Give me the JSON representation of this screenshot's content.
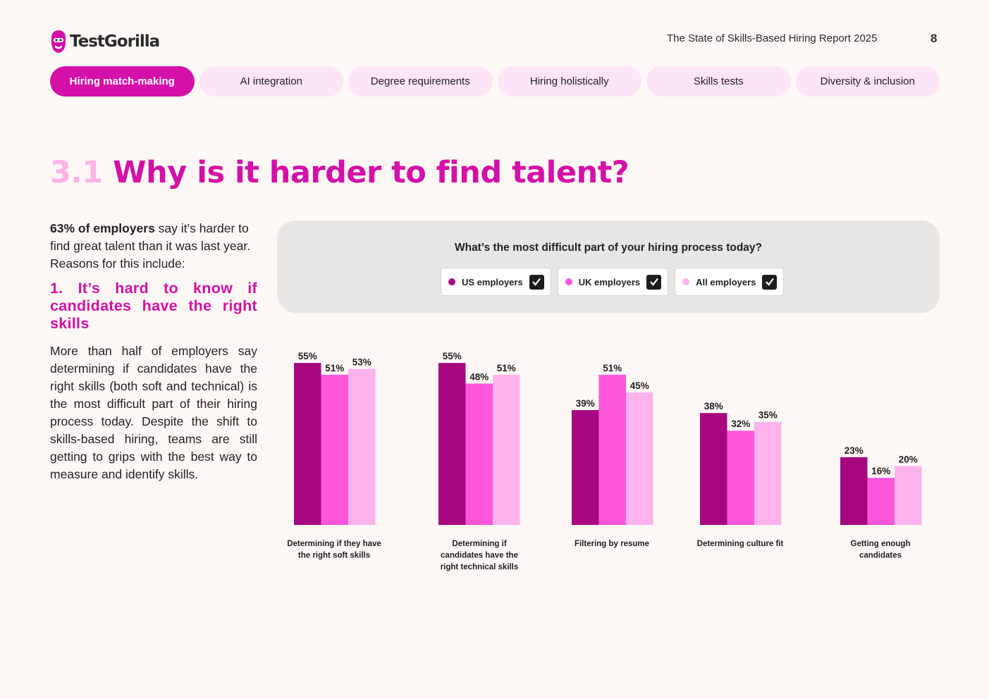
{
  "brand": {
    "name": "TestGorilla",
    "color": "#d410a8"
  },
  "header": {
    "report_title": "The State of Skills-Based Hiring Report 2025",
    "page_number": "8"
  },
  "tabs": [
    {
      "label": "Hiring match-making",
      "active": true
    },
    {
      "label": "AI integration",
      "active": false
    },
    {
      "label": "Degree requirements",
      "active": false
    },
    {
      "label": "Hiring holistically",
      "active": false
    },
    {
      "label": "Skills tests",
      "active": false
    },
    {
      "label": "Diversity & inclusion",
      "active": false
    }
  ],
  "section": {
    "number": "3.1",
    "title": "Why is it harder to find talent?"
  },
  "intro": {
    "bold": "63% of employers",
    "rest": " say it’s harder to find great talent than it was last year. Reasons for this include:"
  },
  "subheading": "1. It’s hard to know if candidates have the right skills",
  "body": "More than half of employers say determining if candidates have the right skills (both soft and technical) is the most difficult part of their hiring process today. Despite the shift to skills-based hiring, teams are still getting to grips with the best way to measure and identify skills.",
  "chart_data": {
    "type": "bar",
    "title": "What’s the most difficult part of your hiring process today?",
    "categories": [
      [
        "Determining if they have",
        "the right soft skills"
      ],
      [
        "Determining if",
        "candidates have the",
        "right technical skills"
      ],
      [
        "Filtering by resume"
      ],
      [
        "Determining culture fit"
      ],
      [
        "Getting enough",
        "candidates"
      ]
    ],
    "series": [
      {
        "name": "US employers",
        "color": "#a8087f",
        "values": [
          55,
          55,
          39,
          38,
          23
        ]
      },
      {
        "name": "UK employers",
        "color": "#ff57dc",
        "values": [
          51,
          48,
          51,
          32,
          16
        ]
      },
      {
        "name": "All employers",
        "color": "#ffb3ec",
        "values": [
          53,
          51,
          45,
          35,
          20
        ]
      }
    ],
    "value_suffix": "%",
    "ylim": [
      0,
      60
    ],
    "grid": false,
    "legend": "top"
  }
}
